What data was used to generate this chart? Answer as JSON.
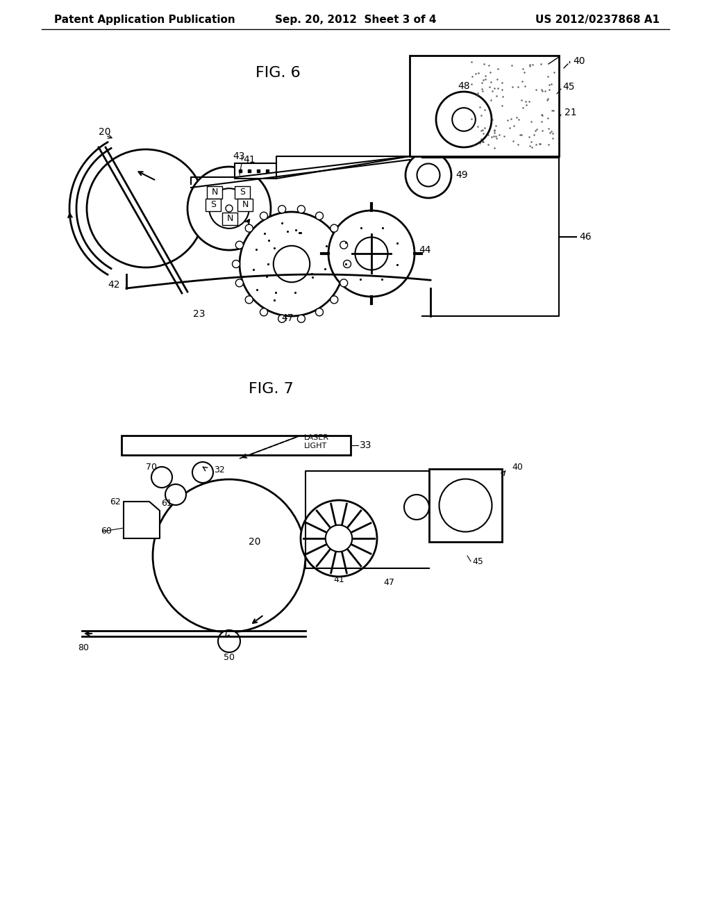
{
  "bg_color": "#ffffff",
  "line_color": "#000000",
  "header_left": "Patent Application Publication",
  "header_mid": "Sep. 20, 2012  Sheet 3 of 4",
  "header_right": "US 2012/0237868 A1",
  "fig6_title": "FIG. 6",
  "fig7_title": "FIG. 7",
  "font_size_header": 11,
  "font_size_fig": 16,
  "font_size_label": 10
}
